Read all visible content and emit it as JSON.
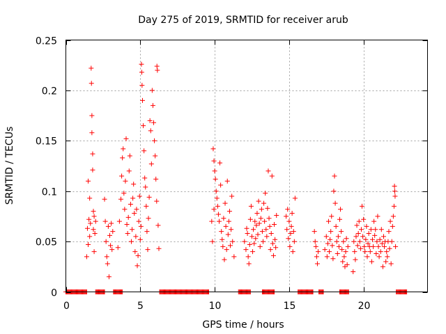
{
  "chart_data": {
    "type": "scatter",
    "title": "Day 275 of 2019, SRMTID for receiver arub",
    "xlabel": "GPS time / hours",
    "ylabel": "SRMTID / TECUs",
    "xlim": [
      0,
      24.3
    ],
    "ylim": [
      0,
      0.25
    ],
    "xticks": [
      0,
      5,
      10,
      15,
      20
    ],
    "xtick_labels": [
      "0",
      "5",
      "10",
      "15",
      "20"
    ],
    "yticks": [
      0,
      0.05,
      0.1,
      0.15,
      0.2,
      0.25
    ],
    "ytick_labels": [
      "0",
      "0.05",
      "0.1",
      "0.15",
      "0.2",
      "0.25"
    ],
    "grid": true,
    "marker": "+",
    "color": "#ff0000",
    "series": [
      {
        "name": "SRMTID",
        "zero_ranges": [
          [
            0.0,
            1.4
          ],
          [
            2.0,
            2.6
          ],
          [
            3.2,
            3.8
          ],
          [
            6.3,
            9.6
          ],
          [
            11.6,
            12.4
          ],
          [
            13.2,
            14.0
          ],
          [
            15.6,
            16.6
          ],
          [
            17.0,
            17.3
          ],
          [
            18.4,
            19.0
          ],
          [
            22.2,
            22.9
          ]
        ],
        "points": [
          [
            1.4,
            0.035
          ],
          [
            1.45,
            0.063
          ],
          [
            1.5,
            0.047
          ],
          [
            1.5,
            0.11
          ],
          [
            1.55,
            0.072
          ],
          [
            1.6,
            0.055
          ],
          [
            1.6,
            0.093
          ],
          [
            1.65,
            0.068
          ],
          [
            1.7,
            0.222
          ],
          [
            1.72,
            0.207
          ],
          [
            1.75,
            0.175
          ],
          [
            1.75,
            0.158
          ],
          [
            1.8,
            0.137
          ],
          [
            1.8,
            0.121
          ],
          [
            1.85,
            0.08
          ],
          [
            1.85,
            0.062
          ],
          [
            1.9,
            0.04
          ],
          [
            1.9,
            0.075
          ],
          [
            1.95,
            0.058
          ],
          [
            2.0,
            0.07
          ],
          [
            2.6,
            0.092
          ],
          [
            2.65,
            0.07
          ],
          [
            2.7,
            0.05
          ],
          [
            2.75,
            0.035
          ],
          [
            2.8,
            0.028
          ],
          [
            2.85,
            0.065
          ],
          [
            2.9,
            0.015
          ],
          [
            2.95,
            0.056
          ],
          [
            3.0,
            0.046
          ],
          [
            3.05,
            0.068
          ],
          [
            3.1,
            0.042
          ],
          [
            3.15,
            0.06
          ],
          [
            3.5,
            0.044
          ],
          [
            3.6,
            0.07
          ],
          [
            3.7,
            0.092
          ],
          [
            3.75,
            0.115
          ],
          [
            3.8,
            0.133
          ],
          [
            3.85,
            0.142
          ],
          [
            3.9,
            0.098
          ],
          [
            3.95,
            0.082
          ],
          [
            4.0,
            0.11
          ],
          [
            4.05,
            0.152
          ],
          [
            4.1,
            0.067
          ],
          [
            4.15,
            0.058
          ],
          [
            4.2,
            0.074
          ],
          [
            4.25,
            0.12
          ],
          [
            4.3,
            0.135
          ],
          [
            4.35,
            0.087
          ],
          [
            4.4,
            0.05
          ],
          [
            4.45,
            0.062
          ],
          [
            4.5,
            0.093
          ],
          [
            4.55,
            0.107
          ],
          [
            4.6,
            0.078
          ],
          [
            4.65,
            0.04
          ],
          [
            4.7,
            0.055
          ],
          [
            4.75,
            0.082
          ],
          [
            4.8,
            0.026
          ],
          [
            4.85,
            0.036
          ],
          [
            4.9,
            0.07
          ],
          [
            4.95,
            0.095
          ],
          [
            5.0,
            0.052
          ],
          [
            5.05,
            0.065
          ],
          [
            5.08,
            0.226
          ],
          [
            5.1,
            0.218
          ],
          [
            5.12,
            0.205
          ],
          [
            5.15,
            0.19
          ],
          [
            5.2,
            0.165
          ],
          [
            5.25,
            0.14
          ],
          [
            5.3,
            0.113
          ],
          [
            5.35,
            0.104
          ],
          [
            5.4,
            0.085
          ],
          [
            5.45,
            0.06
          ],
          [
            5.5,
            0.042
          ],
          [
            5.55,
            0.073
          ],
          [
            5.6,
            0.094
          ],
          [
            5.65,
            0.17
          ],
          [
            5.7,
            0.16
          ],
          [
            5.75,
            0.127
          ],
          [
            5.8,
            0.2
          ],
          [
            5.85,
            0.185
          ],
          [
            5.9,
            0.168
          ],
          [
            5.95,
            0.15
          ],
          [
            6.0,
            0.135
          ],
          [
            6.05,
            0.112
          ],
          [
            6.1,
            0.09
          ],
          [
            6.12,
            0.224
          ],
          [
            6.15,
            0.22
          ],
          [
            6.2,
            0.066
          ],
          [
            6.25,
            0.043
          ],
          [
            9.9,
            0.142
          ],
          [
            9.95,
            0.13
          ],
          [
            10.0,
            0.12
          ],
          [
            10.05,
            0.112
          ],
          [
            10.1,
            0.1
          ],
          [
            10.15,
            0.093
          ],
          [
            10.2,
            0.085
          ],
          [
            10.25,
            0.077
          ],
          [
            10.3,
            0.07
          ],
          [
            10.35,
            0.128
          ],
          [
            10.4,
            0.106
          ],
          [
            10.45,
            0.06
          ],
          [
            10.5,
            0.052
          ],
          [
            10.55,
            0.045
          ],
          [
            10.6,
            0.073
          ],
          [
            10.65,
            0.032
          ],
          [
            10.7,
            0.088
          ],
          [
            10.75,
            0.065
          ],
          [
            10.8,
            0.042
          ],
          [
            10.85,
            0.11
          ],
          [
            10.9,
            0.057
          ],
          [
            10.95,
            0.07
          ],
          [
            11.0,
            0.08
          ],
          [
            11.05,
            0.046
          ],
          [
            11.1,
            0.062
          ],
          [
            11.15,
            0.095
          ],
          [
            11.2,
            0.05
          ],
          [
            11.3,
            0.035
          ],
          [
            9.8,
            0.07
          ],
          [
            9.85,
            0.05
          ],
          [
            9.95,
            0.082
          ],
          [
            12.0,
            0.05
          ],
          [
            12.1,
            0.042
          ],
          [
            12.15,
            0.063
          ],
          [
            12.2,
            0.058
          ],
          [
            12.25,
            0.035
          ],
          [
            12.3,
            0.028
          ],
          [
            12.35,
            0.047
          ],
          [
            12.4,
            0.072
          ],
          [
            12.45,
            0.085
          ],
          [
            12.5,
            0.055
          ],
          [
            12.55,
            0.04
          ],
          [
            12.6,
            0.062
          ],
          [
            12.65,
            0.048
          ],
          [
            12.7,
            0.07
          ],
          [
            12.75,
            0.053
          ],
          [
            12.8,
            0.066
          ],
          [
            12.85,
            0.078
          ],
          [
            12.9,
            0.057
          ],
          [
            12.95,
            0.09
          ],
          [
            13.0,
            0.068
          ],
          [
            13.05,
            0.045
          ],
          [
            13.1,
            0.073
          ],
          [
            13.15,
            0.082
          ],
          [
            13.2,
            0.06
          ],
          [
            13.25,
            0.05
          ],
          [
            13.3,
            0.088
          ],
          [
            13.35,
            0.07
          ],
          [
            13.4,
            0.098
          ],
          [
            13.45,
            0.062
          ],
          [
            13.5,
            0.055
          ],
          [
            13.55,
            0.083
          ],
          [
            13.6,
            0.12
          ],
          [
            13.65,
            0.073
          ],
          [
            13.7,
            0.065
          ],
          [
            13.75,
            0.042
          ],
          [
            13.8,
            0.058
          ],
          [
            13.85,
            0.115
          ],
          [
            13.9,
            0.048
          ],
          [
            13.95,
            0.036
          ],
          [
            14.0,
            0.067
          ],
          [
            14.05,
            0.052
          ],
          [
            14.1,
            0.044
          ],
          [
            14.15,
            0.076
          ],
          [
            14.8,
            0.075
          ],
          [
            14.85,
            0.062
          ],
          [
            14.9,
            0.082
          ],
          [
            14.95,
            0.053
          ],
          [
            15.0,
            0.07
          ],
          [
            15.05,
            0.045
          ],
          [
            15.1,
            0.058
          ],
          [
            15.15,
            0.065
          ],
          [
            15.2,
            0.078
          ],
          [
            15.25,
            0.04
          ],
          [
            15.3,
            0.06
          ],
          [
            15.35,
            0.05
          ],
          [
            15.4,
            0.093
          ],
          [
            16.7,
            0.06
          ],
          [
            16.75,
            0.05
          ],
          [
            16.8,
            0.045
          ],
          [
            16.85,
            0.035
          ],
          [
            16.9,
            0.028
          ],
          [
            16.95,
            0.04
          ],
          [
            17.4,
            0.042
          ],
          [
            17.5,
            0.055
          ],
          [
            17.55,
            0.035
          ],
          [
            17.6,
            0.048
          ],
          [
            17.65,
            0.07
          ],
          [
            17.7,
            0.04
          ],
          [
            17.75,
            0.052
          ],
          [
            17.8,
            0.06
          ],
          [
            17.85,
            0.075
          ],
          [
            17.9,
            0.046
          ],
          [
            17.95,
            0.033
          ],
          [
            18.0,
            0.1
          ],
          [
            18.05,
            0.115
          ],
          [
            18.1,
            0.088
          ],
          [
            18.15,
            0.065
          ],
          [
            18.2,
            0.05
          ],
          [
            18.25,
            0.038
          ],
          [
            18.3,
            0.055
          ],
          [
            18.35,
            0.045
          ],
          [
            18.4,
            0.072
          ],
          [
            18.45,
            0.082
          ],
          [
            18.5,
            0.06
          ],
          [
            18.55,
            0.042
          ],
          [
            18.6,
            0.03
          ],
          [
            18.65,
            0.05
          ],
          [
            18.7,
            0.035
          ],
          [
            18.75,
            0.025
          ],
          [
            18.8,
            0.04
          ],
          [
            18.85,
            0.053
          ],
          [
            18.9,
            0.027
          ],
          [
            18.95,
            0.045
          ],
          [
            19.3,
            0.02
          ],
          [
            19.35,
            0.05
          ],
          [
            19.4,
            0.04
          ],
          [
            19.45,
            0.032
          ],
          [
            19.5,
            0.055
          ],
          [
            19.55,
            0.066
          ],
          [
            19.6,
            0.046
          ],
          [
            19.65,
            0.058
          ],
          [
            19.7,
            0.07
          ],
          [
            19.75,
            0.05
          ],
          [
            19.8,
            0.043
          ],
          [
            19.85,
            0.062
          ],
          [
            19.9,
            0.085
          ],
          [
            19.95,
            0.055
          ],
          [
            20.0,
            0.072
          ],
          [
            20.05,
            0.045
          ],
          [
            20.1,
            0.04
          ],
          [
            20.15,
            0.052
          ],
          [
            20.2,
            0.065
          ],
          [
            20.25,
            0.035
          ],
          [
            20.3,
            0.048
          ],
          [
            20.35,
            0.058
          ],
          [
            20.4,
            0.045
          ],
          [
            20.45,
            0.04
          ],
          [
            20.5,
            0.062
          ],
          [
            20.55,
            0.03
          ],
          [
            20.6,
            0.052
          ],
          [
            20.65,
            0.045
          ],
          [
            20.7,
            0.07
          ],
          [
            20.75,
            0.056
          ],
          [
            20.8,
            0.062
          ],
          [
            20.85,
            0.038
          ],
          [
            20.9,
            0.05
          ],
          [
            20.95,
            0.075
          ],
          [
            21.0,
            0.045
          ],
          [
            21.05,
            0.035
          ],
          [
            21.1,
            0.052
          ],
          [
            21.15,
            0.04
          ],
          [
            21.2,
            0.062
          ],
          [
            21.25,
            0.048
          ],
          [
            21.3,
            0.025
          ],
          [
            21.35,
            0.055
          ],
          [
            21.4,
            0.045
          ],
          [
            21.45,
            0.05
          ],
          [
            21.5,
            0.03
          ],
          [
            21.55,
            0.04
          ],
          [
            21.6,
            0.035
          ],
          [
            21.65,
            0.05
          ],
          [
            21.7,
            0.06
          ],
          [
            21.75,
            0.043
          ],
          [
            21.8,
            0.07
          ],
          [
            21.85,
            0.028
          ],
          [
            21.9,
            0.05
          ],
          [
            21.95,
            0.065
          ],
          [
            22.0,
            0.075
          ],
          [
            22.05,
            0.085
          ],
          [
            22.08,
            0.105
          ],
          [
            22.1,
            0.1
          ],
          [
            22.12,
            0.095
          ],
          [
            22.15,
            0.045
          ]
        ]
      }
    ]
  }
}
